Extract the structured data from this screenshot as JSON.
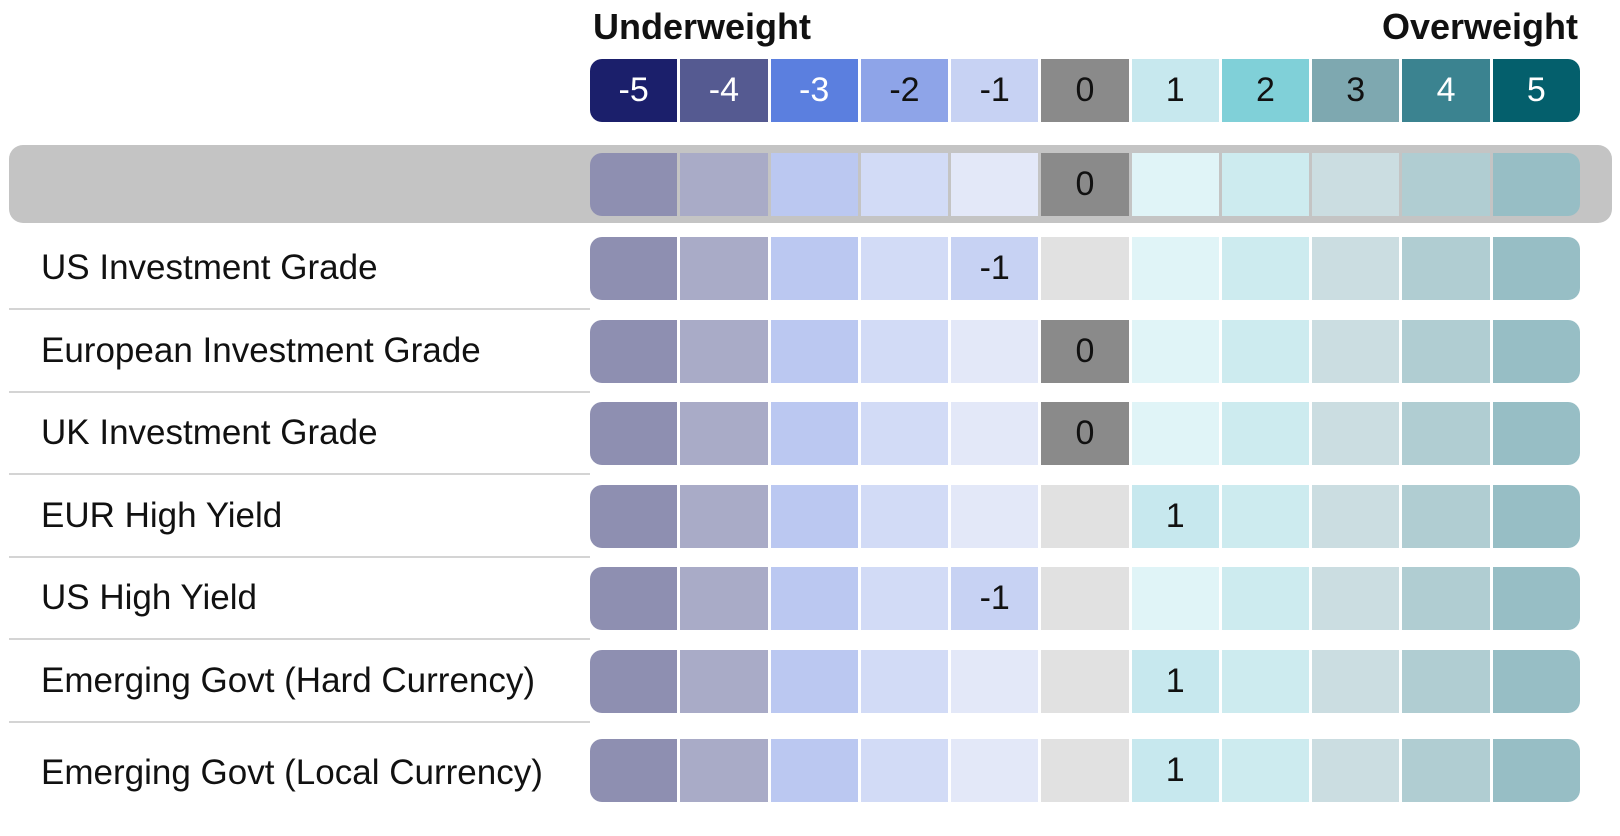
{
  "header": {
    "underweight_label": "Underweight",
    "overweight_label": "Overweight"
  },
  "scale": {
    "values": [
      "-5",
      "-4",
      "-3",
      "-2",
      "-1",
      "0",
      "1",
      "2",
      "3",
      "4",
      "5"
    ],
    "active_colors": [
      "#1b1f6b",
      "#555a91",
      "#5b7fdf",
      "#8ea4e8",
      "#c7d2f3",
      "#8a8a8a",
      "#c7e8ee",
      "#80d0d8",
      "#7ea8b0",
      "#3b8390",
      "#045f6c"
    ],
    "active_text_colors": [
      "#ffffff",
      "#ffffff",
      "#ffffff",
      "#111111",
      "#111111",
      "#111111",
      "#111111",
      "#111111",
      "#111111",
      "#ffffff",
      "#ffffff"
    ],
    "muted_colors": [
      "#8e8fb1",
      "#a9abc7",
      "#bbc8f1",
      "#d2dbf6",
      "#e3e8f8",
      "#e1e1e1",
      "#e0f4f7",
      "#cdebef",
      "#cbdde1",
      "#b0cdd2",
      "#97bec5"
    ]
  },
  "chart_data": {
    "type": "table",
    "title": "",
    "scale_min": -5,
    "scale_max": 5,
    "scale_left_label": "Underweight",
    "scale_right_label": "Overweight",
    "overall": {
      "label": "",
      "value": 0
    },
    "rows": [
      {
        "label": "US Investment Grade",
        "value": -1
      },
      {
        "label": "European Investment Grade",
        "value": 0
      },
      {
        "label": "UK Investment Grade",
        "value": 0
      },
      {
        "label": "EUR High Yield",
        "value": 1
      },
      {
        "label": "US High Yield",
        "value": -1
      },
      {
        "label": "Emerging Govt (Hard Currency)",
        "value": 1
      },
      {
        "label": "Emerging Govt (Local Currency)",
        "value": 1
      }
    ]
  }
}
